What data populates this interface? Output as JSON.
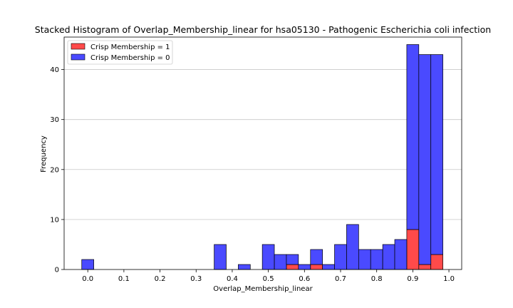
{
  "chart_data": {
    "type": "bar",
    "stacked": true,
    "title": "Stacked Histogram of Overlap_Membership_linear for hsa05130 - Pathogenic Escherichia coli infection",
    "xlabel": "Overlap_Membership_linear",
    "ylabel": "Frequency",
    "xlim": [
      -0.0655,
      1.0354
    ],
    "ylim": [
      0,
      46.5
    ],
    "xticks": [
      0.0,
      0.1,
      0.2,
      0.3,
      0.4,
      0.5,
      0.6,
      0.7,
      0.8,
      0.9,
      1.0
    ],
    "xtick_labels": [
      "0.0",
      "0.1",
      "0.2",
      "0.3",
      "0.4",
      "0.5",
      "0.6",
      "0.7",
      "0.8",
      "0.9",
      "1.0"
    ],
    "yticks": [
      0,
      10,
      20,
      30,
      40
    ],
    "ytick_labels": [
      "0",
      "10",
      "20",
      "30",
      "40"
    ],
    "grid": "y",
    "legend_position": "top-left",
    "bin_width": 0.0333,
    "bin_left_edges": [
      -0.0167,
      0.35,
      0.4167,
      0.4833,
      0.5167,
      0.55,
      0.5833,
      0.6167,
      0.65,
      0.6833,
      0.7167,
      0.75,
      0.7833,
      0.8167,
      0.85,
      0.8833,
      0.9167,
      0.95
    ],
    "series": [
      {
        "name": "Crisp Membership = 1",
        "color": "#ff4a4a",
        "values": [
          0,
          0,
          0,
          0,
          0,
          1,
          0,
          1,
          0,
          0,
          0,
          0,
          0,
          0,
          0,
          8,
          1,
          3
        ]
      },
      {
        "name": "Crisp Membership = 0",
        "color": "#4a4aff",
        "values": [
          2,
          5,
          1,
          5,
          3,
          2,
          1,
          3,
          1,
          5,
          9,
          4,
          4,
          5,
          6,
          37,
          42,
          40
        ]
      }
    ]
  }
}
